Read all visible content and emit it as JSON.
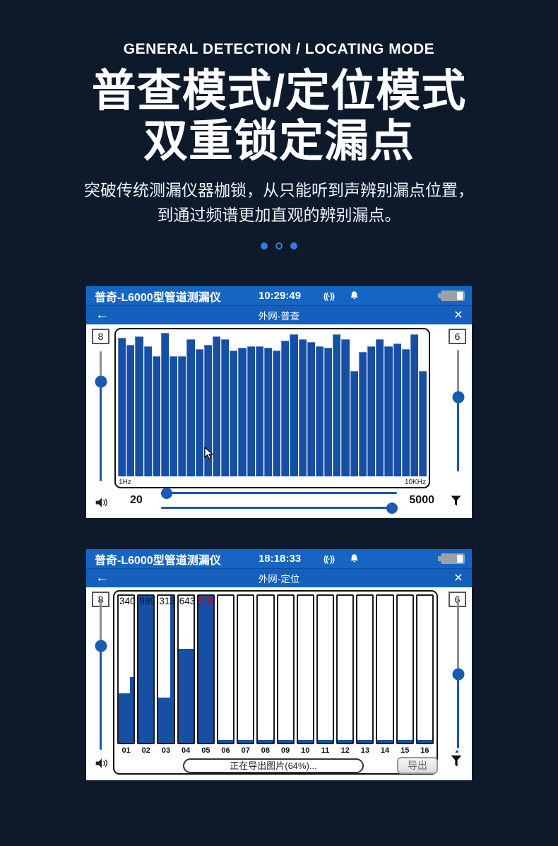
{
  "colors": {
    "page_bg": "#0d1a2c",
    "header_blue": "#1565c4",
    "nav_blue": "#1560bc",
    "bar_blue": "#164fa3",
    "slider_blue": "#1b5ab3",
    "dot_blue": "#2b7fdd",
    "alert_red": "#e00000"
  },
  "hero": {
    "eyebrow": "GENERAL DETECTION / LOCATING MODE",
    "title_line1": "普查模式/定位模式",
    "title_line2": "双重锁定漏点",
    "desc_line1": "突破传统测漏仪器枷锁，从只能听到声辨别漏点位置，",
    "desc_line2": "到通过频谱更加直观的辨别漏点。"
  },
  "carousel": {
    "dots": [
      "filled",
      "hollow",
      "filled"
    ]
  },
  "icons": {
    "back": "←",
    "close": "×",
    "signal": "((·))"
  },
  "device1": {
    "title": "普奇-L6000型管道测漏仪",
    "time": "10:29:49",
    "nav_title": "外网-普查",
    "gain_left": "8",
    "gain_right": "6",
    "band_low": "20",
    "band_high": "5000",
    "sliders": {
      "left_knob_pct": 23,
      "right_knob_pct": 39,
      "hslider1_knob": "left",
      "hslider2_knob": "right"
    },
    "chart_data": {
      "type": "bar",
      "title": "",
      "xlabel": "frequency",
      "x_start_label": "1Hz",
      "x_end_label": "10KHz",
      "ylim": [
        0,
        100
      ],
      "values_pct": [
        96,
        91,
        97,
        90,
        83,
        99,
        83,
        83,
        95,
        88,
        91,
        97,
        95,
        87,
        89,
        90,
        90,
        89,
        87,
        94,
        98,
        95,
        93,
        90,
        89,
        98,
        95,
        73,
        86,
        90,
        95,
        90,
        92,
        88,
        98,
        73
      ]
    }
  },
  "device2": {
    "title": "普奇-L6000型管道测漏仪",
    "time": "18:18:33",
    "nav_title": "外网-定位",
    "gain_left": "8",
    "gain_right": "6",
    "progress_text": "正在导出图片(64%)...",
    "export_label": "导出",
    "sliders": {
      "left_knob_pct": 31,
      "right_knob_pct": 50
    },
    "chart_data": {
      "type": "bar",
      "max_value": 999,
      "categories": [
        "01",
        "02",
        "03",
        "04",
        "05",
        "06",
        "07",
        "08",
        "09",
        "10",
        "11",
        "12",
        "13",
        "14",
        "15",
        "16"
      ],
      "columns": [
        {
          "label": "01",
          "value": "340",
          "height_pct": 34,
          "peak_pct": 45,
          "value_color": "black"
        },
        {
          "label": "02",
          "value": "999",
          "height_pct": 100,
          "peak_pct": 0,
          "value_color": "black"
        },
        {
          "label": "03",
          "value": "313",
          "height_pct": 31,
          "peak_pct": 100,
          "value_color": "black"
        },
        {
          "label": "04",
          "value": "643",
          "height_pct": 64,
          "peak_pct": 0,
          "value_color": "black"
        },
        {
          "label": "05",
          "value": "999",
          "height_pct": 100,
          "peak_pct": 0,
          "value_color": "red"
        },
        {
          "label": "06",
          "value": "",
          "height_pct": 2,
          "peak_pct": 0,
          "value_color": "black"
        },
        {
          "label": "07",
          "value": "",
          "height_pct": 2,
          "peak_pct": 0,
          "value_color": "black"
        },
        {
          "label": "08",
          "value": "",
          "height_pct": 2,
          "peak_pct": 0,
          "value_color": "black"
        },
        {
          "label": "09",
          "value": "",
          "height_pct": 2,
          "peak_pct": 0,
          "value_color": "black"
        },
        {
          "label": "10",
          "value": "",
          "height_pct": 2,
          "peak_pct": 0,
          "value_color": "black"
        },
        {
          "label": "11",
          "value": "",
          "height_pct": 2,
          "peak_pct": 0,
          "value_color": "black"
        },
        {
          "label": "12",
          "value": "",
          "height_pct": 2,
          "peak_pct": 0,
          "value_color": "black"
        },
        {
          "label": "13",
          "value": "",
          "height_pct": 2,
          "peak_pct": 0,
          "value_color": "black"
        },
        {
          "label": "14",
          "value": "",
          "height_pct": 2,
          "peak_pct": 0,
          "value_color": "black"
        },
        {
          "label": "15",
          "value": "",
          "height_pct": 2,
          "peak_pct": 0,
          "value_color": "black"
        },
        {
          "label": "16",
          "value": "",
          "height_pct": 2,
          "peak_pct": 0,
          "value_color": "black"
        }
      ]
    }
  }
}
